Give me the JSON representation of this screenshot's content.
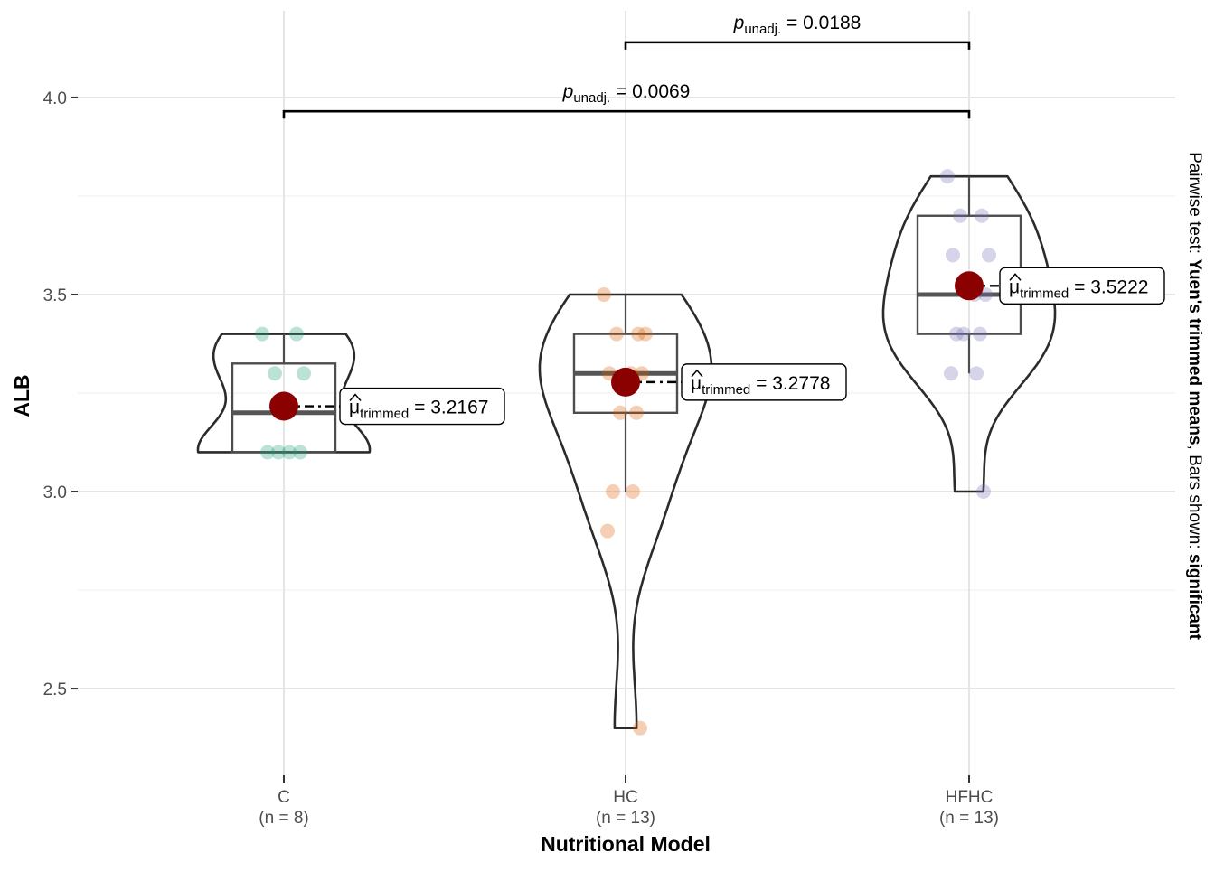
{
  "chart_data": {
    "type": "violin-box",
    "xlabel": "Nutritional Model",
    "ylabel": "ALB",
    "ylim": [
      2.28,
      4.22
    ],
    "y_ticks": [
      2.5,
      3.0,
      3.5,
      4.0
    ],
    "y_tick_labels": [
      "2.5",
      "3.0",
      "3.5",
      "4.0"
    ],
    "grid": true,
    "groups": [
      {
        "name": "C",
        "n_label": "(n = 8)",
        "color": "#1b9e77",
        "points": [
          3.4,
          3.4,
          3.3,
          3.3,
          3.1,
          3.1,
          3.1,
          3.1
        ],
        "box": {
          "q1": 3.1,
          "median": 3.2,
          "q3": 3.325,
          "whisker_low": 3.1,
          "whisker_high": 3.4
        },
        "violin_range": [
          3.1,
          3.4
        ],
        "trimmed_mean": 3.2167,
        "mean_label": "3.2167"
      },
      {
        "name": "HC",
        "n_label": "(n = 13)",
        "color": "#d95f02",
        "points": [
          3.5,
          3.4,
          3.4,
          3.4,
          3.3,
          3.3,
          3.3,
          3.2,
          3.2,
          3.0,
          3.0,
          2.9,
          2.4
        ],
        "box": {
          "q1": 3.2,
          "median": 3.3,
          "q3": 3.4,
          "whisker_low": 3.0,
          "whisker_high": 3.5
        },
        "violin_range": [
          2.4,
          3.5
        ],
        "trimmed_mean": 3.2778,
        "mean_label": "3.2778"
      },
      {
        "name": "HFHC",
        "n_label": "(n = 13)",
        "color": "#7570b3",
        "points": [
          3.8,
          3.7,
          3.7,
          3.6,
          3.6,
          3.5,
          3.5,
          3.4,
          3.4,
          3.4,
          3.3,
          3.3,
          3.0
        ],
        "box": {
          "q1": 3.4,
          "median": 3.5,
          "q3": 3.7,
          "whisker_low": 3.3,
          "whisker_high": 3.8
        },
        "violin_range": [
          3.0,
          3.8
        ],
        "trimmed_mean": 3.5222,
        "mean_label": "3.5222"
      }
    ],
    "mean_label_prefix": "μ",
    "mean_label_subscript": "trimmed",
    "mean_color": "#8b0000",
    "pairwise": [
      {
        "from": "HC",
        "to": "HFHC",
        "p_label": "p",
        "p_sub": "unadj.",
        "p_value": "= 0.0188",
        "y": 4.14
      },
      {
        "from": "C",
        "to": "HFHC",
        "p_label": "p",
        "p_sub": "unadj.",
        "p_value": "= 0.0069",
        "y": 3.965
      }
    ],
    "side_caption": {
      "part1": "Pairwise test: ",
      "part2": "Yuen's trimmed means",
      "part3": ", Bars shown: ",
      "part4": "significant"
    }
  }
}
